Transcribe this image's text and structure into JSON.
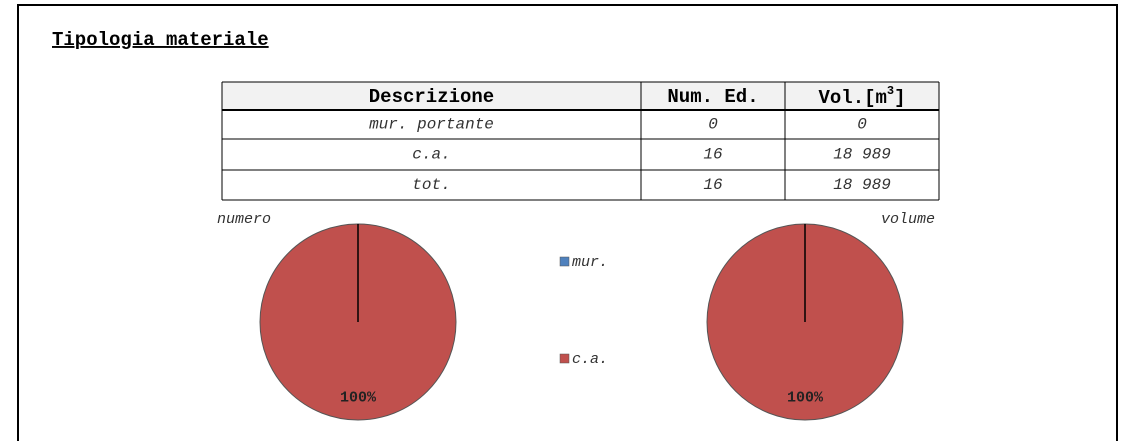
{
  "title": "Tipologia materiale",
  "table": {
    "header": [
      "Descrizione",
      "Num. Ed.",
      {
        "text": "Vol.[m",
        "sup": "3",
        "end": "]"
      }
    ],
    "rows": [
      [
        "mur. portante",
        "0",
        "0"
      ],
      [
        "c.a.",
        "16",
        "18 989"
      ],
      [
        "tot.",
        "16",
        "18 989"
      ]
    ]
  },
  "chart_data": [
    {
      "type": "pie",
      "title": "numero",
      "categories": [
        "mur.",
        "c.a."
      ],
      "values": [
        0,
        100
      ],
      "value_labels": [
        null,
        "100%"
      ],
      "colors": [
        "#4f81bd",
        "#c0504d"
      ]
    },
    {
      "type": "pie",
      "title": "volume",
      "categories": [
        "mur.",
        "c.a."
      ],
      "values": [
        0,
        100
      ],
      "value_labels": [
        null,
        "100%"
      ],
      "colors": [
        "#4f81bd",
        "#c0504d"
      ]
    }
  ]
}
